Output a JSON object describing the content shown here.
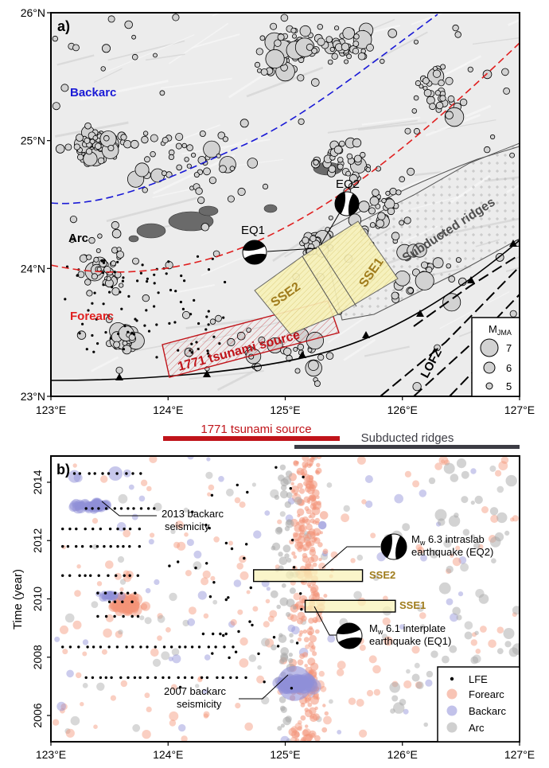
{
  "chart_data": [
    {
      "type": "map",
      "panel_label": "a)",
      "x_range": [
        123,
        127
      ],
      "y_range": [
        23,
        26
      ],
      "x_ticks": [
        "123°E",
        "124°E",
        "125°E",
        "126°E",
        "127°E"
      ],
      "y_ticks": [
        "23°N",
        "24°N",
        "25°N",
        "26°N"
      ],
      "region_labels": {
        "backarc": "Backarc",
        "arc": "Arc",
        "forearc": "Forearc",
        "tsunami": "1771 tsunami source",
        "sse1": "SSE1",
        "sse2": "SSE2",
        "ridges": "Subducted ridges",
        "lofz": "LOFZ",
        "eq1": "EQ1",
        "eq2": "EQ2"
      },
      "legend": {
        "title": "M",
        "title_sub": "JMA",
        "entries": [
          "7",
          "6",
          "5"
        ]
      }
    },
    {
      "type": "scatter",
      "panel_label": "b)",
      "ylabel": "Time (year)",
      "x_range": [
        123,
        127
      ],
      "y_range": [
        2005.1,
        2014.9
      ],
      "x_ticks": [
        "123°E",
        "124°E",
        "125°E",
        "126°E",
        "127°E"
      ],
      "y_ticks": [
        "2006",
        "2008",
        "2010",
        "2012",
        "2014"
      ],
      "annotations": {
        "backarc2013_l1": "2013 backarc",
        "backarc2013_l2": "seismicity",
        "backarc2007_l1": "2007 backarc",
        "backarc2007_l2": "seismicity",
        "eq2_l1_pre": "M",
        "eq2_l1_sub": "w",
        "eq2_l1_post": " 6.3 intraslab",
        "eq2_l2": "earthquake (EQ2)",
        "eq1_l1_pre": "M",
        "eq1_l1_sub": "w",
        "eq1_l1_post": " 6.1 interplate",
        "eq1_l2": "earthquake (EQ1)",
        "sse1": "SSE1",
        "sse2": "SSE2"
      },
      "sse_windows": [
        {
          "name": "SSE2",
          "lon": [
            124.73,
            125.66
          ],
          "t": [
            2010.6,
            2011.0
          ]
        },
        {
          "name": "SSE1",
          "lon": [
            125.17,
            125.94
          ],
          "t": [
            2009.55,
            2009.95
          ]
        }
      ],
      "legend": [
        "LFE",
        "Forearc",
        "Backarc",
        "Arc"
      ]
    }
  ],
  "bar_labels": {
    "tsunami": "1771 tsunami source",
    "ridges": "Subducted ridges"
  },
  "colors": {
    "backarc": "#1a1ad6",
    "forearc": "#e02020",
    "tsunami": "#c0141a",
    "sse": "#a07c1c",
    "ridges_bar": "#3c3c44",
    "forearc_dot": "#f39478",
    "backarc_dot": "#8f8fd8",
    "arc_dot": "#a8a8a8"
  }
}
